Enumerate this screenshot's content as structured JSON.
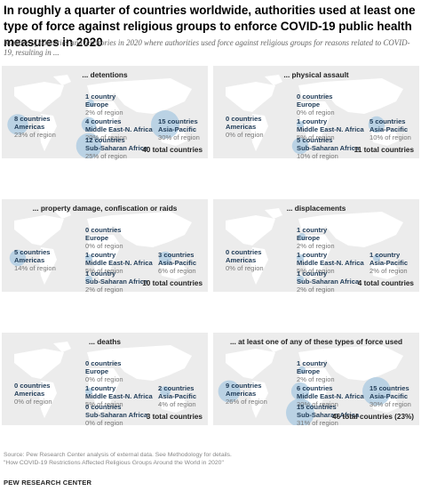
{
  "title": "In roughly a quarter of countries worldwide, authorities used at least one type of force against religious groups to enforce COVID-19 public health measures in 2020",
  "subtitle": "Number of countries and territories in 2020 where authorities used force against religious groups for reasons related to COVID-19, resulting in ...",
  "colors": {
    "bubble": "#a9c9e2",
    "land": "#e0e0e0",
    "panel_bg": "#ececec",
    "text_dark": "#1f3b57"
  },
  "panels": [
    {
      "id": "detentions",
      "title": "... detentions",
      "total": "40 total countries",
      "regions": [
        {
          "key": "europe",
          "count": "1",
          "unit": "country",
          "region": "Europe",
          "pct": "2% of region",
          "value": 1
        },
        {
          "key": "americas",
          "count": "8",
          "unit": "countries",
          "region": "Americas",
          "pct": "23% of region",
          "value": 8
        },
        {
          "key": "mena",
          "count": "4",
          "unit": "countries",
          "region": "Middle East-N. Africa",
          "pct": "20% of region",
          "value": 4
        },
        {
          "key": "asia",
          "count": "15",
          "unit": "countries",
          "region": "Asia-Pacific",
          "pct": "30% of region",
          "value": 15
        },
        {
          "key": "ssa",
          "count": "12",
          "unit": "countries",
          "region": "Sub-Saharan Africa",
          "pct": "25% of region",
          "value": 12
        }
      ]
    },
    {
      "id": "physical-assault",
      "title": "... physical assault",
      "total": "11 total countries",
      "regions": [
        {
          "key": "europe",
          "count": "0",
          "unit": "countries",
          "region": "Europe",
          "pct": "0% of region",
          "value": 0
        },
        {
          "key": "americas",
          "count": "0",
          "unit": "countries",
          "region": "Americas",
          "pct": "0% of region",
          "value": 0
        },
        {
          "key": "mena",
          "count": "1",
          "unit": "country",
          "region": "Middle East-N. Africa",
          "pct": "5% of region",
          "value": 1
        },
        {
          "key": "asia",
          "count": "5",
          "unit": "countries",
          "region": "Asia-Pacific",
          "pct": "10% of region",
          "value": 5
        },
        {
          "key": "ssa",
          "count": "5",
          "unit": "countries",
          "region": "Sub-Saharan Africa",
          "pct": "10% of region",
          "value": 5
        }
      ]
    },
    {
      "id": "property-damage",
      "title": "... property damage, confiscation or raids",
      "total": "10 total countries",
      "regions": [
        {
          "key": "europe",
          "count": "0",
          "unit": "countries",
          "region": "Europe",
          "pct": "0% of region",
          "value": 0
        },
        {
          "key": "americas",
          "count": "5",
          "unit": "countries",
          "region": "Americas",
          "pct": "14% of region",
          "value": 5
        },
        {
          "key": "mena",
          "count": "1",
          "unit": "country",
          "region": "Middle East-N. Africa",
          "pct": "5% of region",
          "value": 1
        },
        {
          "key": "asia",
          "count": "3",
          "unit": "countries",
          "region": "Asia-Pacific",
          "pct": "6% of region",
          "value": 3
        },
        {
          "key": "ssa",
          "count": "1",
          "unit": "country",
          "region": "Sub-Saharan Africa",
          "pct": "2% of region",
          "value": 1
        }
      ]
    },
    {
      "id": "displacements",
      "title": "... displacements",
      "total": "4 total countries",
      "regions": [
        {
          "key": "europe",
          "count": "1",
          "unit": "country",
          "region": "Europe",
          "pct": "2% of region",
          "value": 1
        },
        {
          "key": "americas",
          "count": "0",
          "unit": "countries",
          "region": "Americas",
          "pct": "0% of region",
          "value": 0
        },
        {
          "key": "mena",
          "count": "1",
          "unit": "country",
          "region": "Middle East-N. Africa",
          "pct": "5% of region",
          "value": 1
        },
        {
          "key": "asia",
          "count": "1",
          "unit": "country",
          "region": "Asia-Pacific",
          "pct": "2% of region",
          "value": 1
        },
        {
          "key": "ssa",
          "count": "1",
          "unit": "country",
          "region": "Sub-Saharan Africa",
          "pct": "2% of region",
          "value": 1
        }
      ]
    },
    {
      "id": "deaths",
      "title": "... deaths",
      "total": "3 total countries",
      "regions": [
        {
          "key": "europe",
          "count": "0",
          "unit": "countries",
          "region": "Europe",
          "pct": "0% of region",
          "value": 0
        },
        {
          "key": "americas",
          "count": "0",
          "unit": "countries",
          "region": "Americas",
          "pct": "0% of region",
          "value": 0
        },
        {
          "key": "mena",
          "count": "1",
          "unit": "country",
          "region": "Middle East-N. Africa",
          "pct": "5% of region",
          "value": 1
        },
        {
          "key": "asia",
          "count": "2",
          "unit": "countries",
          "region": "Asia-Pacific",
          "pct": "4% of region",
          "value": 2
        },
        {
          "key": "ssa",
          "count": "0",
          "unit": "countries",
          "region": "Sub-Saharan Africa",
          "pct": "0% of region",
          "value": 0
        }
      ]
    },
    {
      "id": "any-force",
      "title": "... at least one of any of these types of force used",
      "total": "46 total countries (23%)",
      "regions": [
        {
          "key": "europe",
          "count": "1",
          "unit": "country",
          "region": "Europe",
          "pct": "2% of region",
          "value": 1
        },
        {
          "key": "americas",
          "count": "9",
          "unit": "countries",
          "region": "Americas",
          "pct": "26% of region",
          "value": 9
        },
        {
          "key": "mena",
          "count": "6",
          "unit": "countries",
          "region": "Middle East-N. Africa",
          "pct": "30% of region",
          "value": 6
        },
        {
          "key": "asia",
          "count": "15",
          "unit": "countries",
          "region": "Asia-Pacific",
          "pct": "30% of region",
          "value": 15
        },
        {
          "key": "ssa",
          "count": "15",
          "unit": "countries",
          "region": "Sub-Saharan Africa",
          "pct": "31% of region",
          "value": 15
        }
      ]
    }
  ],
  "source_line1": "Source: Pew Research Center analysis of external data. See Methodology for details.",
  "source_line2": "\"How COVID-19 Restrictions Affected Religious Groups Around the World in 2020\"",
  "logo": "PEW RESEARCH CENTER",
  "chart_data": {
    "type": "scatter",
    "title": "In roughly a quarter of countries worldwide, authorities used at least one type of force against religious groups to enforce COVID-19 public health measures in 2020",
    "categories": [
      "Europe",
      "Americas",
      "Middle East-N. Africa",
      "Asia-Pacific",
      "Sub-Saharan Africa"
    ],
    "series": [
      {
        "name": "... detentions",
        "values": [
          1,
          8,
          4,
          15,
          12
        ],
        "percent_of_region": [
          2,
          23,
          20,
          30,
          25
        ],
        "total": 40
      },
      {
        "name": "... physical assault",
        "values": [
          0,
          0,
          1,
          5,
          5
        ],
        "percent_of_region": [
          0,
          0,
          5,
          10,
          10
        ],
        "total": 11
      },
      {
        "name": "... property damage, confiscation or raids",
        "values": [
          0,
          5,
          1,
          3,
          1
        ],
        "percent_of_region": [
          0,
          14,
          5,
          6,
          2
        ],
        "total": 10
      },
      {
        "name": "... displacements",
        "values": [
          1,
          0,
          1,
          1,
          1
        ],
        "percent_of_region": [
          2,
          0,
          5,
          2,
          2
        ],
        "total": 4
      },
      {
        "name": "... deaths",
        "values": [
          0,
          0,
          1,
          2,
          0
        ],
        "percent_of_region": [
          0,
          0,
          5,
          4,
          0
        ],
        "total": 3
      },
      {
        "name": "... at least one of any of these types of force used",
        "values": [
          1,
          9,
          6,
          15,
          15
        ],
        "percent_of_region": [
          2,
          26,
          30,
          30,
          31
        ],
        "total": 46
      }
    ]
  }
}
